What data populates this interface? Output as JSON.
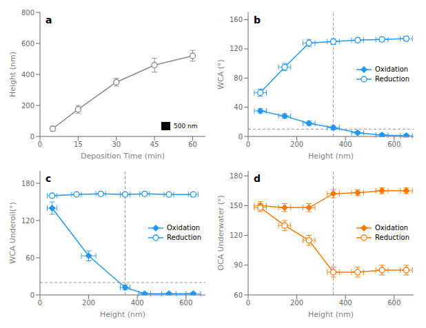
{
  "chart_data": [
    {
      "type": "scatter",
      "title": "a",
      "x_label": "Deposition Time (min)",
      "y_label": "Height (nm)",
      "xlim": [
        0,
        65
      ],
      "xticks": [
        0,
        15,
        30,
        45,
        60
      ],
      "ylim": [
        0,
        800
      ],
      "yticks": [
        0,
        200,
        400,
        600,
        800
      ],
      "grid": false,
      "series": [
        {
          "color": "#888888",
          "marker": "open_circle",
          "line_style": "solid",
          "x": [
            5,
            15,
            30,
            45,
            60
          ],
          "values": [
            50,
            175,
            350,
            460,
            520
          ],
          "yerr": [
            15,
            25,
            25,
            45,
            35
          ]
        }
      ],
      "annotations": [
        {
          "text": "500 nm",
          "x": 52,
          "y": 67
        }
      ]
    },
    {
      "type": "scatter",
      "title": "b",
      "x_label": "Height (nm)",
      "y_label": "WCA (°)",
      "xlim": [
        0,
        680
      ],
      "xticks": [
        0,
        200,
        400,
        600
      ],
      "ylim": [
        0,
        170
      ],
      "yticks": [
        0,
        40,
        80,
        120,
        160
      ],
      "grid": false,
      "legend": "center right",
      "vline": 350,
      "hline": 10,
      "series": [
        {
          "name": "Oxidation",
          "color": "#2196F3",
          "marker": "diamond",
          "line_style": "solid",
          "x": [
            50,
            150,
            250,
            350,
            450,
            550,
            650
          ],
          "values": [
            35,
            28,
            18,
            12,
            5,
            2,
            1
          ],
          "xerr": [
            25,
            25,
            25,
            25,
            25,
            25,
            25
          ],
          "yerr": [
            3,
            3,
            3,
            3,
            2,
            2,
            2
          ]
        },
        {
          "name": "Reduction",
          "color": "#2196F3",
          "marker": "open_circle",
          "line_style": "solid",
          "x": [
            50,
            150,
            250,
            350,
            450,
            550,
            650
          ],
          "values": [
            60,
            95,
            128,
            130,
            132,
            133,
            134
          ],
          "xerr": [
            25,
            25,
            25,
            25,
            25,
            25,
            25
          ],
          "yerr": [
            5,
            5,
            5,
            4,
            3,
            3,
            3
          ]
        }
      ]
    },
    {
      "type": "scatter",
      "title": "c",
      "x_label": "Height (nm)",
      "y_label": "WCA Underoil(°)",
      "xlim": [
        0,
        680
      ],
      "xticks": [
        0,
        200,
        400,
        600
      ],
      "ylim": [
        0,
        200
      ],
      "yticks": [
        0,
        60,
        120,
        180
      ],
      "grid": false,
      "legend": "center right",
      "vline": 350,
      "hline": 20,
      "series": [
        {
          "name": "Oxidation",
          "color": "#2196F3",
          "marker": "diamond",
          "line_style": "solid",
          "x": [
            50,
            200,
            350,
            430,
            530,
            630
          ],
          "values": [
            140,
            63,
            12,
            2,
            2,
            2
          ],
          "xerr": [
            20,
            30,
            20,
            25,
            30,
            30
          ],
          "yerr": [
            10,
            8,
            4,
            2,
            2,
            2
          ]
        },
        {
          "name": "Reduction",
          "color": "#2196F3",
          "marker": "open_circle",
          "line_style": "solid",
          "x": [
            50,
            150,
            250,
            350,
            430,
            530,
            630
          ],
          "values": [
            160,
            162,
            163,
            162,
            163,
            162,
            162
          ],
          "xerr": [
            20,
            20,
            20,
            20,
            20,
            20,
            20
          ],
          "yerr": [
            3,
            3,
            3,
            3,
            3,
            3,
            3
          ]
        }
      ]
    },
    {
      "type": "scatter",
      "title": "d",
      "x_label": "Height (nm)",
      "y_label": "OCA Underwater (°)",
      "xlim": [
        0,
        680
      ],
      "xticks": [
        0,
        200,
        400,
        600
      ],
      "ylim": [
        60,
        185
      ],
      "yticks": [
        60,
        90,
        120,
        150,
        180
      ],
      "grid": false,
      "legend": "center right",
      "vline": 350,
      "series": [
        {
          "name": "Oxidation",
          "color": "#FF7700",
          "marker": "diamond",
          "line_style": "solid",
          "x": [
            50,
            150,
            250,
            350,
            450,
            550,
            650
          ],
          "values": [
            150,
            148,
            148,
            162,
            163,
            165,
            165
          ],
          "xerr": [
            25,
            25,
            25,
            25,
            25,
            25,
            25
          ],
          "yerr": [
            4,
            4,
            4,
            4,
            3,
            3,
            3
          ]
        },
        {
          "name": "Reduction",
          "color": "#FF7700",
          "marker": "open_circle",
          "line_style": "solid",
          "x": [
            50,
            150,
            250,
            350,
            450,
            550,
            650
          ],
          "values": [
            148,
            130,
            115,
            83,
            83,
            85,
            85
          ],
          "xerr": [
            25,
            25,
            25,
            25,
            25,
            25,
            25
          ],
          "yerr": [
            4,
            5,
            5,
            5,
            5,
            5,
            5
          ]
        }
      ]
    }
  ]
}
